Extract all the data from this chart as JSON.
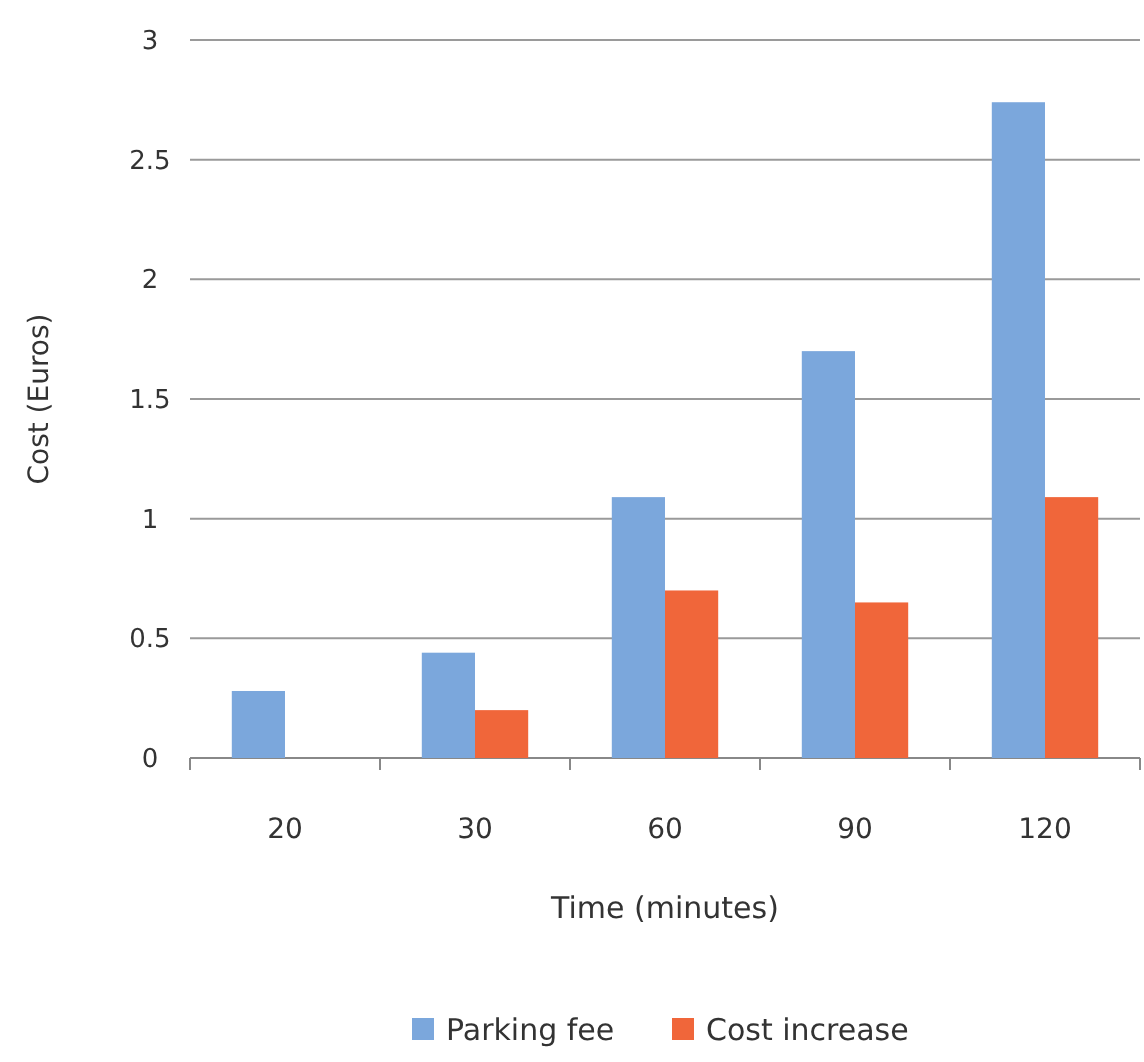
{
  "chart_data": {
    "type": "bar",
    "xlabel": "Time (minutes)",
    "ylabel": "Cost (Euros)",
    "categories": [
      "20",
      "30",
      "60",
      "90",
      "120"
    ],
    "series": [
      {
        "name": "Parking fee",
        "color": "#7ba7dc",
        "values": [
          0.28,
          0.44,
          1.09,
          1.7,
          2.74
        ]
      },
      {
        "name": "Cost increase",
        "color": "#f0663a",
        "values": [
          null,
          0.2,
          0.7,
          0.65,
          1.09
        ]
      }
    ],
    "ylim": [
      0,
      3
    ],
    "yticks": [
      0,
      0.5,
      1,
      1.5,
      2,
      2.5,
      3
    ],
    "grid": "y",
    "legend": "bottom"
  }
}
